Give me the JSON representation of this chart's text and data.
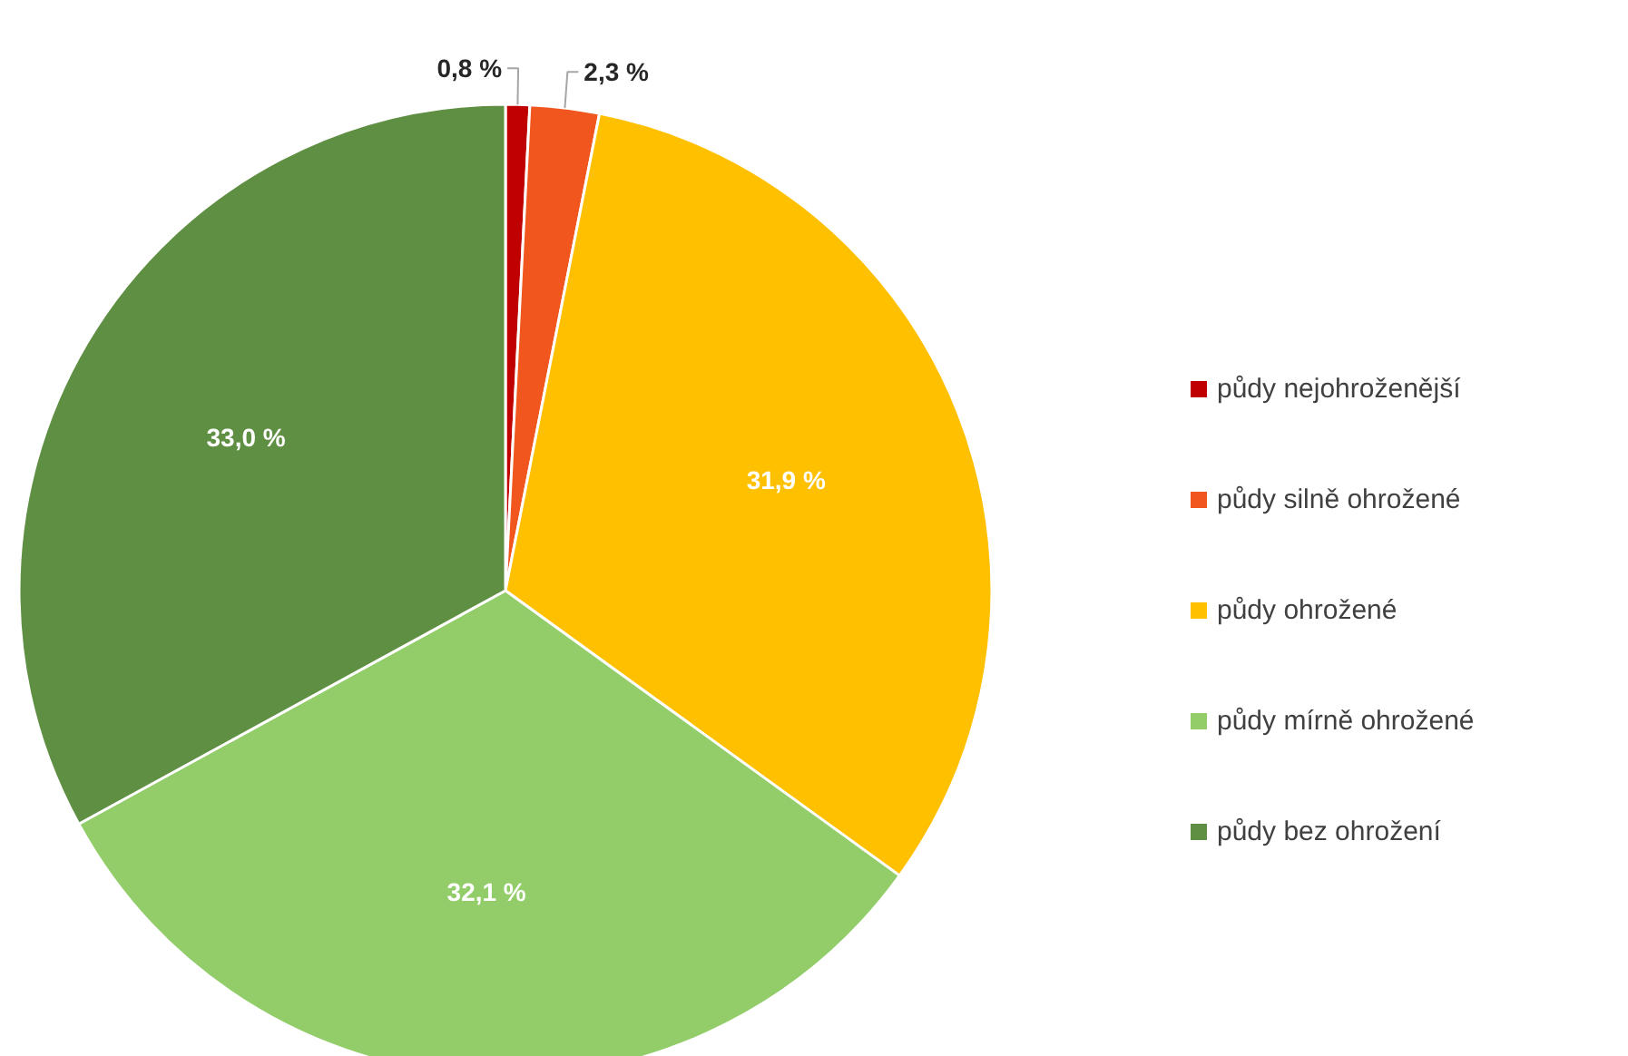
{
  "chart_data": {
    "type": "pie",
    "categories": [
      "půdy nejohroženější",
      "půdy silně ohrožené",
      "půdy ohrožené",
      "půdy mírně ohrožené",
      "půdy bez ohrožení"
    ],
    "values": [
      0.8,
      2.3,
      31.9,
      32.1,
      33.0
    ],
    "colors": [
      "#c00000",
      "#f0561d",
      "#ffc000",
      "#92cd6a",
      "#5f8f42"
    ],
    "value_labels": [
      "0,8 %",
      "2,3 %",
      "31,9 %",
      "32,1 %",
      "33,0 %"
    ],
    "legend": "right"
  }
}
